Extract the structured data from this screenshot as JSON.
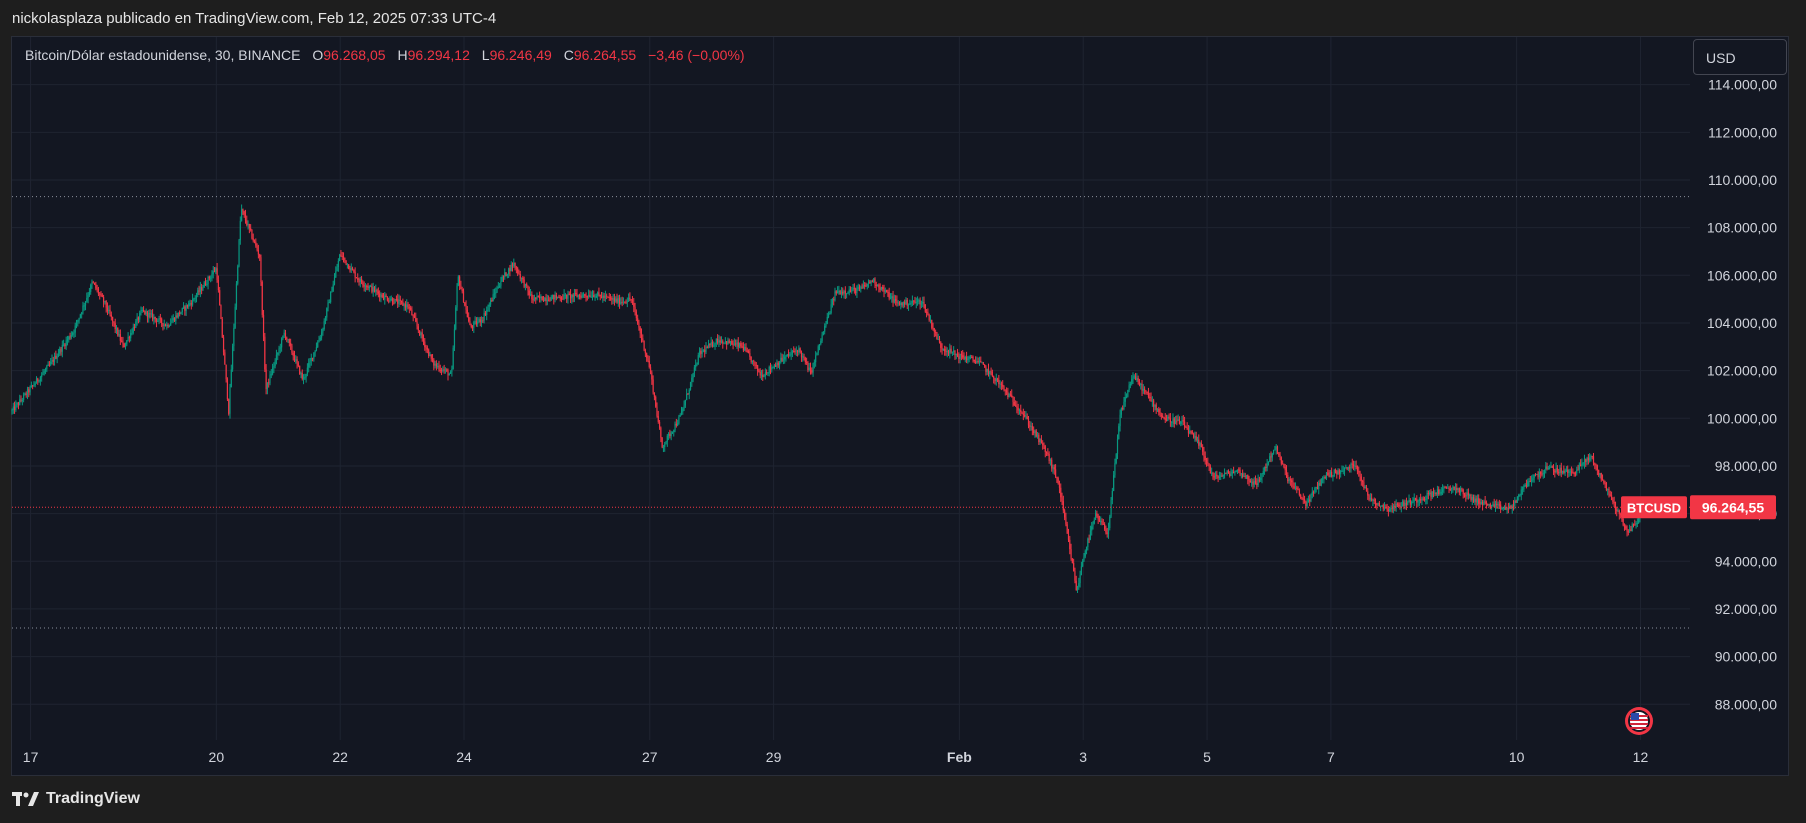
{
  "header": {
    "published": "nickolasplaza publicado en TradingView.com, Feb 12, 2025 07:33 UTC-4"
  },
  "legend": {
    "symbol": "Bitcoin/Dólar estadounidense, 30, BINANCE",
    "o_label": "O",
    "o_value": "96.268,05",
    "h_label": "H",
    "h_value": "96.294,12",
    "l_label": "L",
    "l_value": "96.246,49",
    "c_label": "C",
    "c_value": "96.264,55",
    "change": "−3,46 (−0,00%)"
  },
  "currency": "USD",
  "footer": {
    "brand": "TradingView"
  },
  "colors": {
    "up": "#089981",
    "down": "#f23645",
    "bg": "#131722",
    "grid": "#1f2430",
    "text": "#d1d4dc"
  },
  "icons": {
    "flag": "us-flag-icon",
    "logo": "tradingview-logo-icon"
  },
  "chart_data": {
    "type": "candlestick",
    "symbol": "BTCUSD",
    "last_price": 96264.55,
    "last_price_label": "96.264,55",
    "y_ticks": [
      {
        "value": 88000,
        "label": "88.000,00"
      },
      {
        "value": 90000,
        "label": "90.000,00"
      },
      {
        "value": 92000,
        "label": "92.000,00"
      },
      {
        "value": 94000,
        "label": "94.000,00"
      },
      {
        "value": 96000,
        "label": "96.000,00"
      },
      {
        "value": 98000,
        "label": "98.000,00"
      },
      {
        "value": 100000,
        "label": "100.000,00"
      },
      {
        "value": 102000,
        "label": "102.000,00"
      },
      {
        "value": 104000,
        "label": "104.000,00"
      },
      {
        "value": 106000,
        "label": "106.000,00"
      },
      {
        "value": 108000,
        "label": "108.000,00"
      },
      {
        "value": 110000,
        "label": "110.000,00"
      },
      {
        "value": 112000,
        "label": "112.000,00"
      },
      {
        "value": 114000,
        "label": "114.000,00"
      }
    ],
    "ylim": [
      86500,
      116000
    ],
    "x_ticks": [
      {
        "day": 0,
        "label": "17"
      },
      {
        "day": 3,
        "label": "20"
      },
      {
        "day": 5,
        "label": "22"
      },
      {
        "day": 7,
        "label": "24"
      },
      {
        "day": 10,
        "label": "27"
      },
      {
        "day": 12,
        "label": "29"
      },
      {
        "day": 15,
        "label": "Feb"
      },
      {
        "day": 17,
        "label": "3"
      },
      {
        "day": 19,
        "label": "5"
      },
      {
        "day": 21,
        "label": "7"
      },
      {
        "day": 24,
        "label": "10"
      },
      {
        "day": 26,
        "label": "12"
      }
    ],
    "xlim": [
      -0.3,
      26.8
    ],
    "hlines": [
      109300,
      91200
    ],
    "price_path": [
      [
        -0.3,
        100300
      ],
      [
        0.3,
        102200
      ],
      [
        0.7,
        103700
      ],
      [
        1.0,
        105700
      ],
      [
        1.2,
        104800
      ],
      [
        1.5,
        103000
      ],
      [
        1.8,
        104500
      ],
      [
        2.2,
        103900
      ],
      [
        2.6,
        104900
      ],
      [
        3.0,
        106300
      ],
      [
        3.2,
        100300
      ],
      [
        3.4,
        108800
      ],
      [
        3.7,
        106800
      ],
      [
        3.8,
        101200
      ],
      [
        4.1,
        103600
      ],
      [
        4.4,
        101600
      ],
      [
        4.7,
        103600
      ],
      [
        5.0,
        106900
      ],
      [
        5.3,
        105800
      ],
      [
        5.7,
        105100
      ],
      [
        6.1,
        104700
      ],
      [
        6.5,
        102300
      ],
      [
        6.8,
        101800
      ],
      [
        6.9,
        106000
      ],
      [
        7.1,
        103800
      ],
      [
        7.3,
        104200
      ],
      [
        7.6,
        105800
      ],
      [
        7.8,
        106500
      ],
      [
        8.1,
        105000
      ],
      [
        8.6,
        105100
      ],
      [
        9.1,
        105200
      ],
      [
        9.5,
        104900
      ],
      [
        9.7,
        105000
      ],
      [
        10.0,
        102100
      ],
      [
        10.2,
        98800
      ],
      [
        10.5,
        100100
      ],
      [
        10.8,
        102700
      ],
      [
        11.1,
        103300
      ],
      [
        11.5,
        103000
      ],
      [
        11.8,
        101800
      ],
      [
        12.1,
        102400
      ],
      [
        12.4,
        102900
      ],
      [
        12.6,
        101900
      ],
      [
        13.0,
        105300
      ],
      [
        13.4,
        105400
      ],
      [
        13.6,
        105800
      ],
      [
        14.0,
        104800
      ],
      [
        14.4,
        104900
      ],
      [
        14.7,
        103000
      ],
      [
        15.0,
        102600
      ],
      [
        15.3,
        102400
      ],
      [
        15.6,
        101600
      ],
      [
        16.0,
        100300
      ],
      [
        16.4,
        98600
      ],
      [
        16.6,
        97300
      ],
      [
        16.9,
        92700
      ],
      [
        17.0,
        94200
      ],
      [
        17.2,
        95900
      ],
      [
        17.4,
        95200
      ],
      [
        17.6,
        100200
      ],
      [
        17.8,
        101800
      ],
      [
        18.0,
        101100
      ],
      [
        18.3,
        100000
      ],
      [
        18.6,
        99800
      ],
      [
        18.9,
        98800
      ],
      [
        19.1,
        97500
      ],
      [
        19.5,
        97800
      ],
      [
        19.8,
        97200
      ],
      [
        20.1,
        98800
      ],
      [
        20.3,
        97500
      ],
      [
        20.6,
        96400
      ],
      [
        20.9,
        97600
      ],
      [
        21.2,
        97800
      ],
      [
        21.4,
        98100
      ],
      [
        21.6,
        96700
      ],
      [
        21.9,
        96200
      ],
      [
        22.3,
        96500
      ],
      [
        22.7,
        96900
      ],
      [
        23.0,
        97100
      ],
      [
        23.3,
        96600
      ],
      [
        23.6,
        96300
      ],
      [
        23.9,
        96200
      ],
      [
        24.2,
        97400
      ],
      [
        24.5,
        97900
      ],
      [
        24.9,
        97700
      ],
      [
        25.2,
        98400
      ],
      [
        25.5,
        96800
      ],
      [
        25.8,
        95200
      ],
      [
        26.0,
        95900
      ],
      [
        26.1,
        96260
      ]
    ],
    "labels": {
      "symbol_tag": "BTCUSD"
    }
  }
}
